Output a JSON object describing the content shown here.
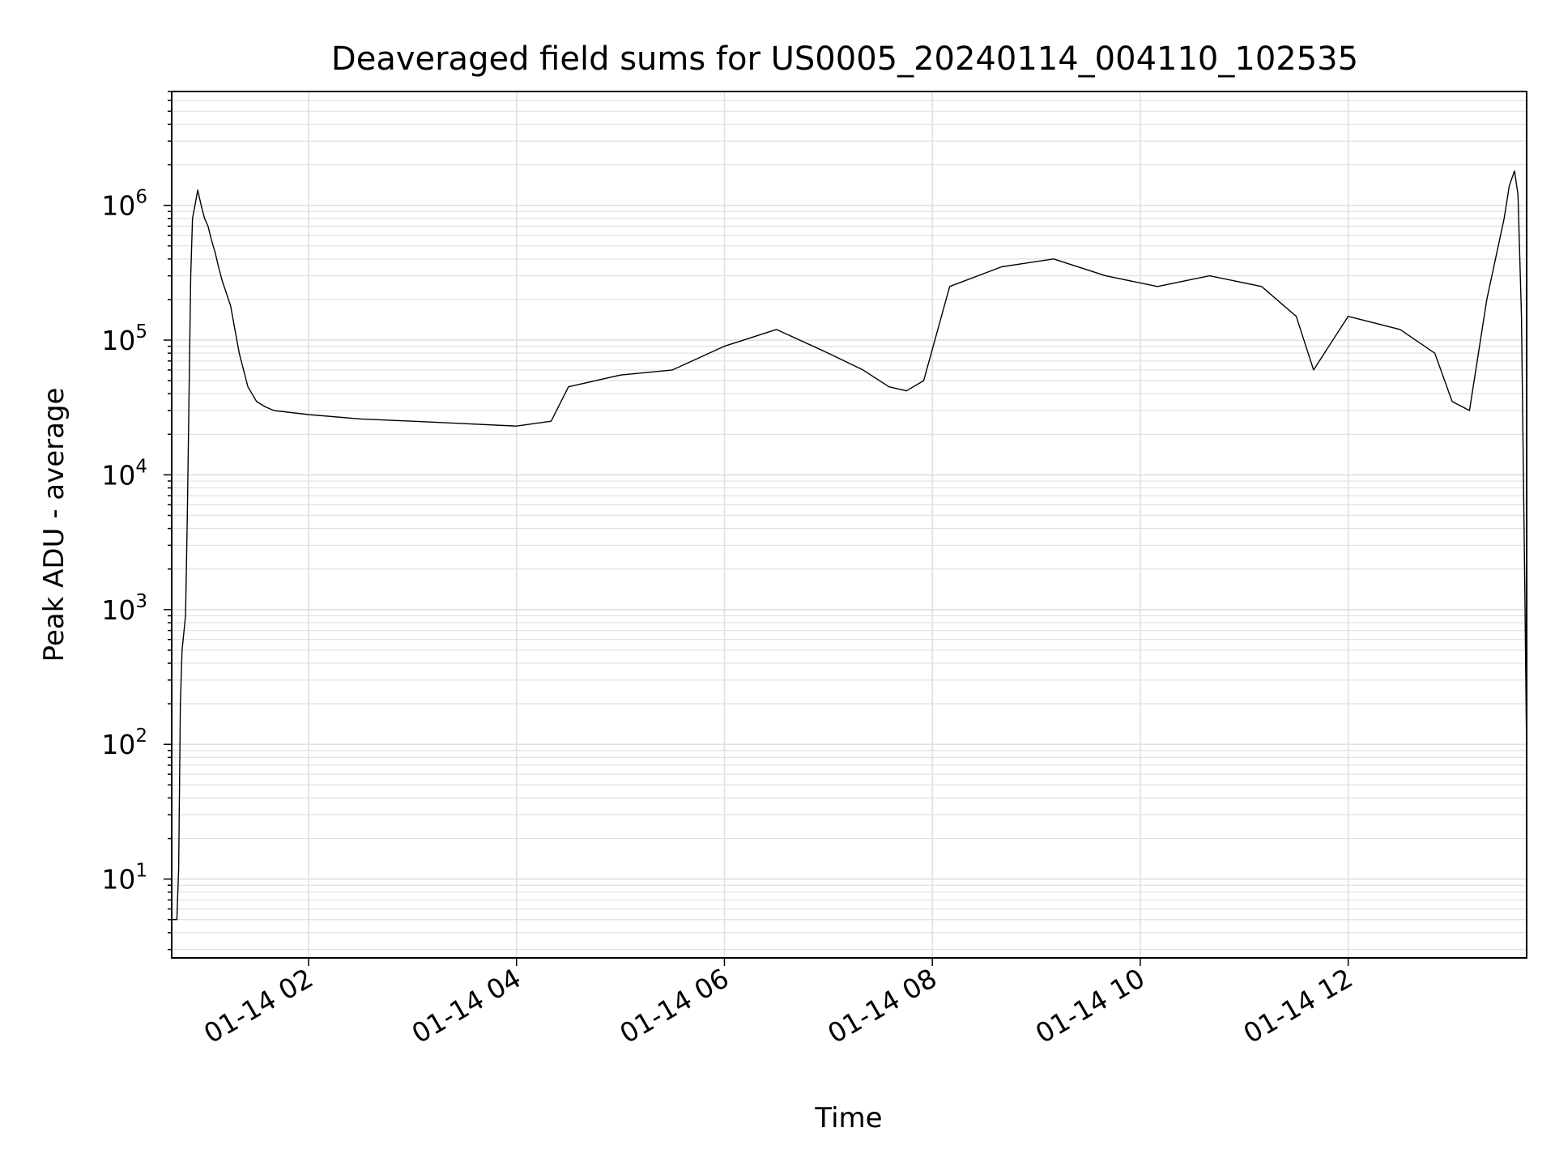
{
  "chart_data": {
    "type": "line",
    "title": "Deaveraged field sums for US0005_20240114_004110_102535",
    "xlabel": "Time",
    "ylabel": "Peak ADU - average",
    "yscale": "log",
    "ylim": [
      2.6,
      7000000
    ],
    "xlim": [
      "2024-01-14 00:41",
      "2024-01-14 13:43"
    ],
    "grid": true,
    "line_color": "#000000",
    "grid_color": "#e0e0e0",
    "x_ticks": [
      "01-14 02",
      "01-14 04",
      "01-14 06",
      "01-14 08",
      "01-14 10",
      "01-14 12"
    ],
    "y_ticks": [
      {
        "base": "10",
        "exp": "1",
        "value": 10
      },
      {
        "base": "10",
        "exp": "2",
        "value": 100
      },
      {
        "base": "10",
        "exp": "3",
        "value": 1000
      },
      {
        "base": "10",
        "exp": "4",
        "value": 10000
      },
      {
        "base": "10",
        "exp": "5",
        "value": 100000
      },
      {
        "base": "10",
        "exp": "6",
        "value": 1000000
      }
    ],
    "series": [
      {
        "x": [
          "2024-01-14 00:41",
          "2024-01-14 00:43",
          "2024-01-14 00:44",
          "2024-01-14 00:45",
          "2024-01-14 00:46",
          "2024-01-14 00:47",
          "2024-01-14 00:49",
          "2024-01-14 00:50",
          "2024-01-14 00:52",
          "2024-01-14 00:53",
          "2024-01-14 00:55",
          "2024-01-14 00:56",
          "2024-01-14 00:58",
          "2024-01-14 01:00",
          "2024-01-14 01:02",
          "2024-01-14 01:04",
          "2024-01-14 01:06",
          "2024-01-14 01:08",
          "2024-01-14 01:10",
          "2024-01-14 01:15",
          "2024-01-14 01:20",
          "2024-01-14 01:25",
          "2024-01-14 01:30",
          "2024-01-14 01:35",
          "2024-01-14 01:40",
          "2024-01-14 02:00",
          "2024-01-14 02:30",
          "2024-01-14 03:00",
          "2024-01-14 03:30",
          "2024-01-14 04:00",
          "2024-01-14 04:20",
          "2024-01-14 04:30",
          "2024-01-14 05:00",
          "2024-01-14 05:30",
          "2024-01-14 06:00",
          "2024-01-14 06:30",
          "2024-01-14 07:00",
          "2024-01-14 07:20",
          "2024-01-14 07:35",
          "2024-01-14 07:45",
          "2024-01-14 07:55",
          "2024-01-14 08:10",
          "2024-01-14 08:40",
          "2024-01-14 09:10",
          "2024-01-14 09:40",
          "2024-01-14 10:10",
          "2024-01-14 10:40",
          "2024-01-14 11:10",
          "2024-01-14 11:30",
          "2024-01-14 11:40",
          "2024-01-14 12:00",
          "2024-01-14 12:30",
          "2024-01-14 12:50",
          "2024-01-14 13:00",
          "2024-01-14 13:10",
          "2024-01-14 13:20",
          "2024-01-14 13:30",
          "2024-01-14 13:33",
          "2024-01-14 13:36",
          "2024-01-14 13:38",
          "2024-01-14 13:40",
          "2024-01-14 13:42",
          "2024-01-14 13:43"
        ],
        "y": [
          5,
          5,
          5,
          12,
          200,
          500,
          900,
          5000,
          300000,
          800000,
          1100000,
          1300000,
          1000000,
          800000,
          700000,
          550000,
          450000,
          350000,
          280000,
          180000,
          80000,
          45000,
          35000,
          32000,
          30000,
          28000,
          26000,
          25000,
          24000,
          23000,
          25000,
          45000,
          55000,
          60000,
          90000,
          120000,
          80000,
          60000,
          45000,
          42000,
          50000,
          250000,
          350000,
          400000,
          300000,
          250000,
          300000,
          250000,
          150000,
          60000,
          150000,
          120000,
          80000,
          35000,
          30000,
          200000,
          800000,
          1400000,
          1800000,
          1200000,
          150000,
          1200,
          80
        ]
      }
    ]
  }
}
